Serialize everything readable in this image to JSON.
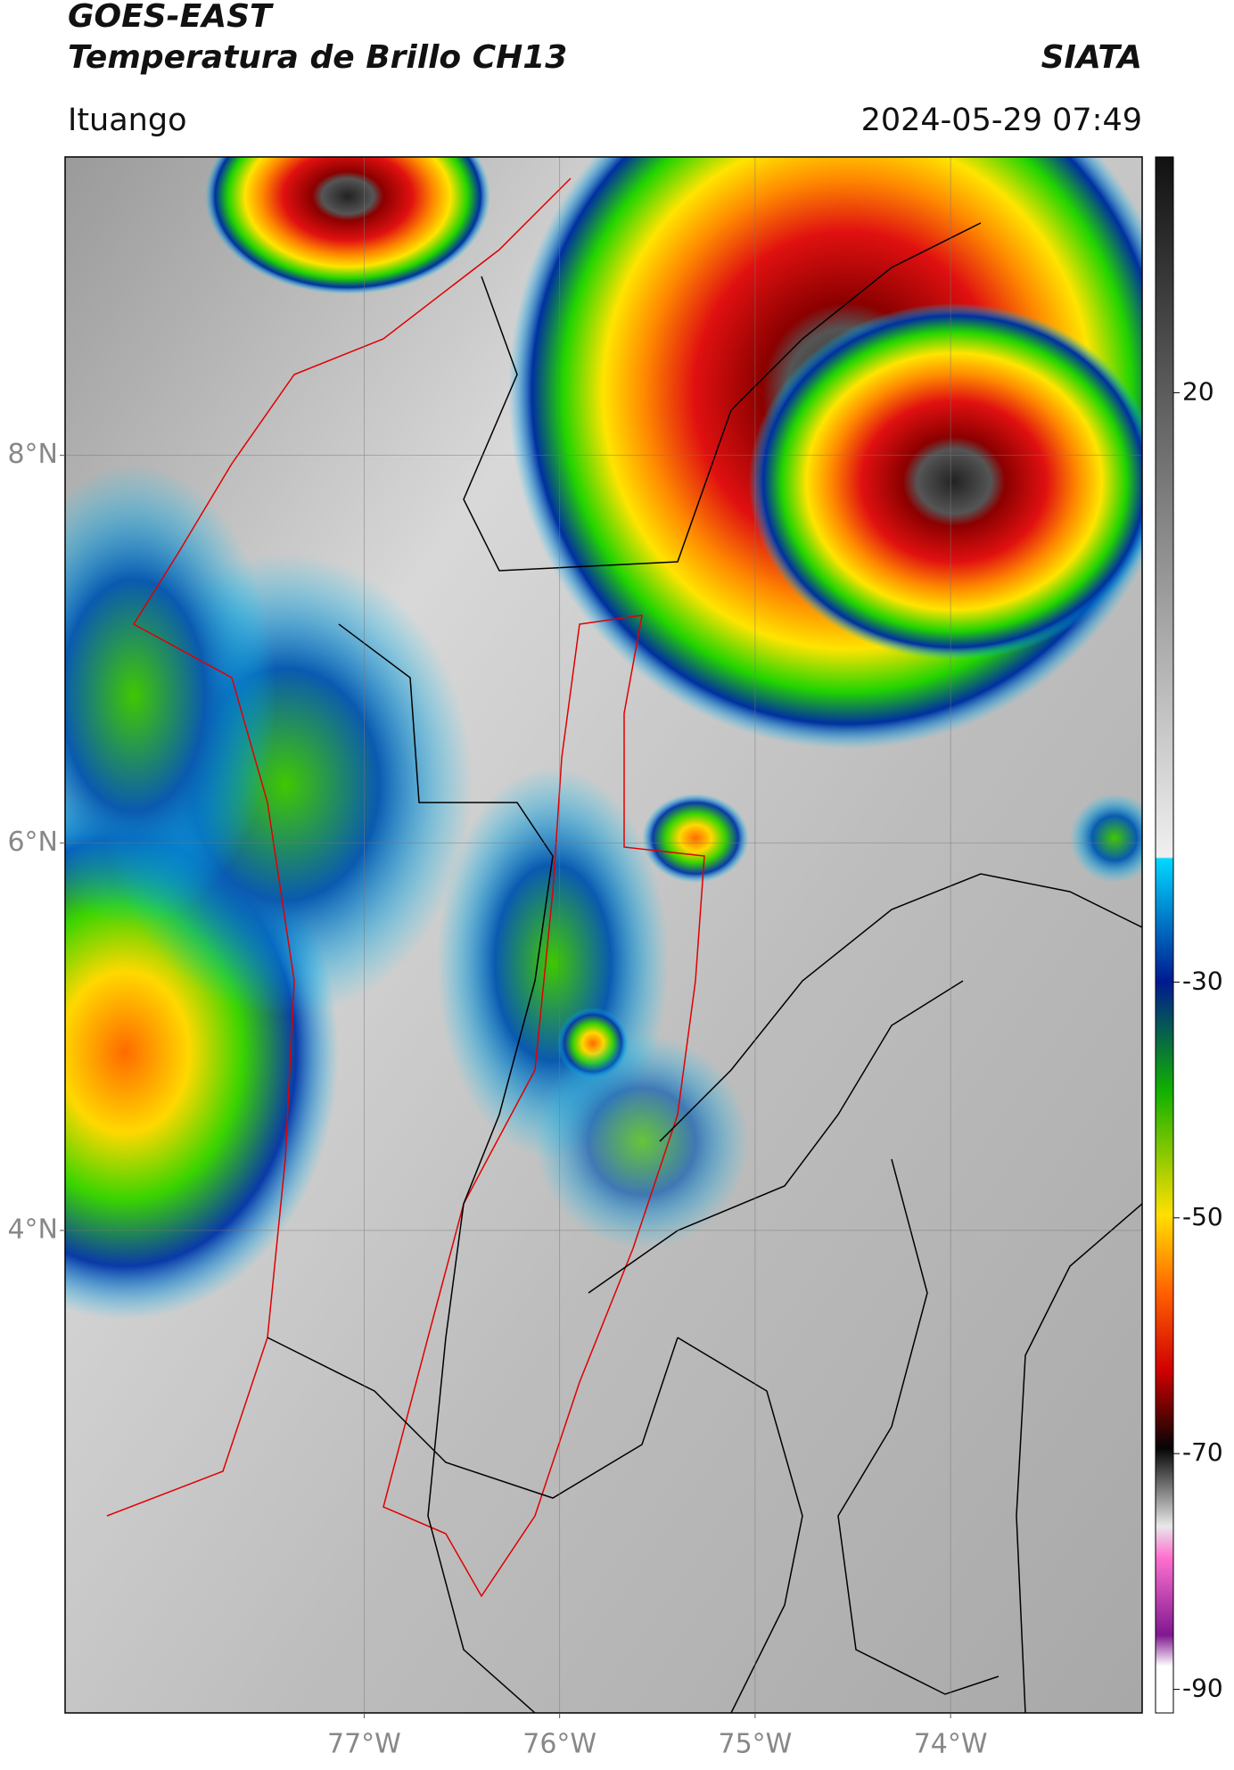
{
  "header": {
    "title": "GOES-EAST",
    "subtitle": "Temperatura de Brillo CH13",
    "agency": "SIATA",
    "location": "Ituango",
    "datetime": "2024-05-29 07:49"
  },
  "map": {
    "lonlim": [
      -78.53,
      -73.02
    ],
    "latlim": [
      1.51,
      9.54
    ],
    "lat_ticks": [
      {
        "value": 8,
        "label": "8°N"
      },
      {
        "value": 6,
        "label": "6°N"
      },
      {
        "value": 4,
        "label": "4°N"
      }
    ],
    "lon_ticks": [
      {
        "value": -77,
        "label": "77°W"
      },
      {
        "value": -76,
        "label": "76°W"
      },
      {
        "value": -75,
        "label": "75°W"
      },
      {
        "value": -74,
        "label": "74°W"
      }
    ],
    "colorbar": {
      "lim": [
        -92,
        40
      ],
      "ticks": [
        20,
        -30,
        -50,
        -70,
        -90
      ]
    }
  }
}
